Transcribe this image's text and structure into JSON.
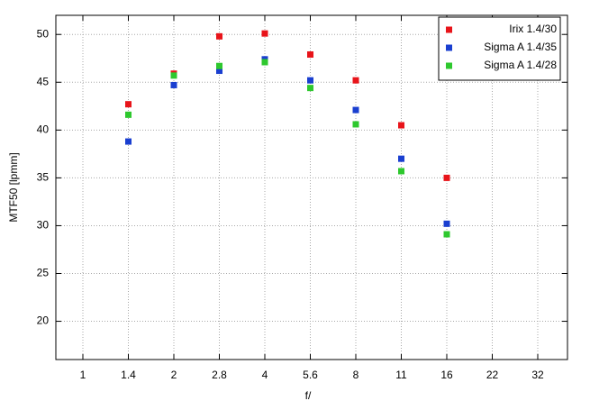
{
  "chart_data": {
    "type": "scatter",
    "x_label": "f/",
    "y_label": "MTF50 [lpmm]",
    "categories": [
      "1",
      "1.4",
      "2",
      "2.8",
      "4",
      "5.6",
      "8",
      "11",
      "16",
      "22",
      "32"
    ],
    "series": [
      {
        "name": "Irix 1.4/30",
        "color": "#e8141a",
        "values": [
          null,
          42.7,
          45.9,
          49.8,
          50.1,
          47.9,
          45.2,
          40.5,
          35.0,
          null,
          null
        ]
      },
      {
        "name": "Sigma A 1.4/35",
        "color": "#1a3fd0",
        "values": [
          null,
          38.8,
          44.7,
          46.2,
          47.4,
          45.2,
          42.1,
          37.0,
          30.2,
          null,
          null
        ]
      },
      {
        "name": "Sigma A 1.4/28",
        "color": "#2ec82e",
        "values": [
          null,
          41.6,
          45.7,
          46.7,
          47.1,
          44.4,
          40.6,
          35.7,
          29.1,
          null,
          null
        ]
      }
    ],
    "ylim": [
      16,
      52
    ],
    "yticks": [
      20,
      25,
      30,
      35,
      40,
      45,
      50
    ],
    "grid": true,
    "legend": "upper right"
  }
}
